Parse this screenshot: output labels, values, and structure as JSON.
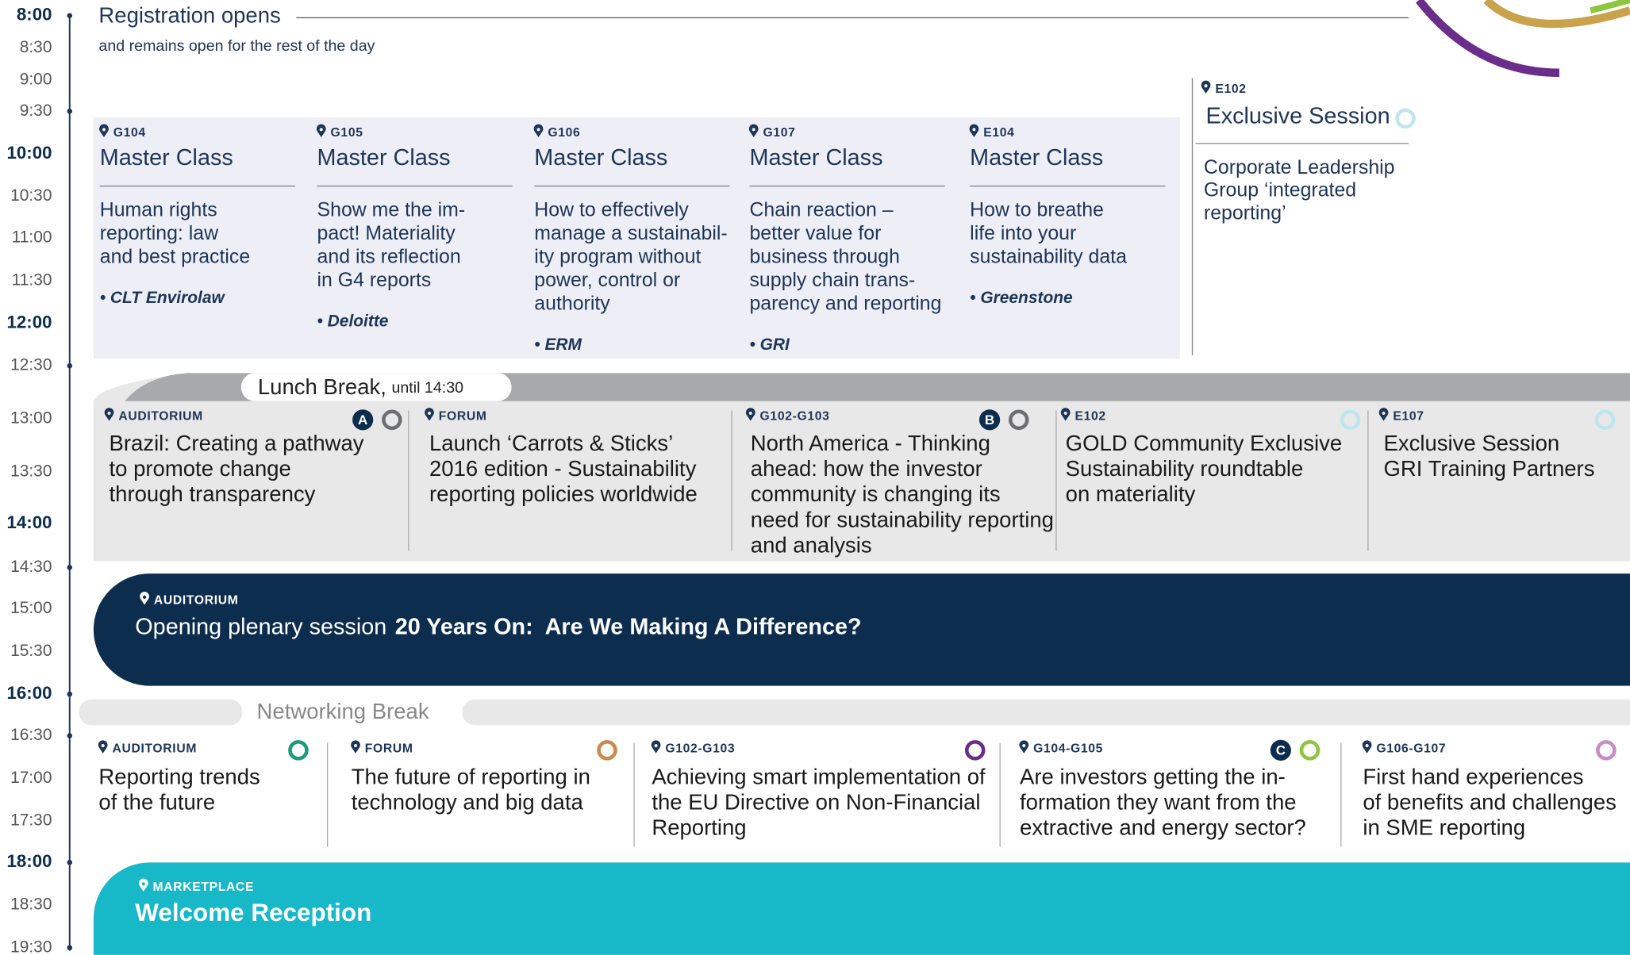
{
  "times": [
    {
      "label": "8:00",
      "major": true
    },
    {
      "label": "8:30",
      "major": false
    },
    {
      "label": "9:00",
      "major": false
    },
    {
      "label": "9:30",
      "major": false
    },
    {
      "label": "10:00",
      "major": true
    },
    {
      "label": "10:30",
      "major": false
    },
    {
      "label": "11:00",
      "major": false
    },
    {
      "label": "11:30",
      "major": false
    },
    {
      "label": "12:00",
      "major": true
    },
    {
      "label": "12:30",
      "major": false
    },
    {
      "label": "13:00",
      "major": false
    },
    {
      "label": "13:30",
      "major": false
    },
    {
      "label": "14:00",
      "major": true
    },
    {
      "label": "14:30",
      "major": false
    },
    {
      "label": "15:00",
      "major": false
    },
    {
      "label": "15:30",
      "major": false
    },
    {
      "label": "16:00",
      "major": true
    },
    {
      "label": "16:30",
      "major": false
    },
    {
      "label": "17:00",
      "major": false
    },
    {
      "label": "17:30",
      "major": false
    },
    {
      "label": "18:00",
      "major": true
    },
    {
      "label": "18:30",
      "major": false
    },
    {
      "label": "19:30",
      "major": false
    }
  ],
  "registration": {
    "title": "Registration opens",
    "note": "and remains open for the rest of the day"
  },
  "master_classes": [
    {
      "room": "G104",
      "title": "Master Class",
      "lines": [
        "Human rights",
        "reporting:  law",
        "and best practice"
      ],
      "speaker": "• CLT Envirolaw"
    },
    {
      "room": "G105",
      "title": "Master Class",
      "lines": [
        "Show me the im-",
        "pact! Materiality",
        "and its reflection",
        "in G4 reports"
      ],
      "speaker": "• Deloitte"
    },
    {
      "room": "G106",
      "title": "Master Class",
      "lines": [
        "How to effectively",
        "manage a sustainabil-",
        "ity program without",
        "power, control or",
        "authority"
      ],
      "speaker": "• ERM"
    },
    {
      "room": "G107",
      "title": "Master Class",
      "lines": [
        "Chain reaction –",
        "better value for",
        "business through",
        "supply chain trans-",
        "parency and reporting"
      ],
      "speaker": "• GRI"
    },
    {
      "room": "E104",
      "title": "Master Class",
      "lines": [
        "How to breathe",
        "life into your",
        "sustainability data"
      ],
      "speaker": "• Greenstone"
    }
  ],
  "exclusive": {
    "room": "E102",
    "title": "Exclusive Session",
    "lines": [
      "Corporate Leadership",
      "Group ‘integrated",
      "reporting’"
    ],
    "color": "#bfe6ee"
  },
  "lunch": {
    "label": "Lunch Break,",
    "until": "until 14:30"
  },
  "midday_sessions": [
    {
      "room": "AUDITORIUM",
      "badge": "A",
      "color": "#6d6e71",
      "lines": [
        "Brazil: Creating a pathway",
        "to promote change",
        "through transparency"
      ]
    },
    {
      "room": "FORUM",
      "lines": [
        "Launch ‘Carrots & Sticks’",
        "2016 edition - Sustainability",
        "reporting policies worldwide"
      ]
    },
    {
      "room": "G102-G103",
      "badge": "B",
      "color": "#6d6e71",
      "lines": [
        "North America - Thinking",
        "ahead: how the investor",
        "community is changing its",
        "need for sustainability reporting",
        "and analysis"
      ]
    },
    {
      "room": "E102",
      "color": "#bfe6ee",
      "lines": [
        "GOLD Community Exclusive",
        "Sustainability roundtable",
        "on materiality"
      ]
    },
    {
      "room": "E107",
      "color": "#bfe6ee",
      "lines": [
        "Exclusive Session",
        "GRI Training Partners"
      ]
    }
  ],
  "plenary": {
    "room": "AUDITORIUM",
    "prefix": "Opening plenary session",
    "title": "20 Years On:  Are We Making A Difference?"
  },
  "networking": "Networking Break",
  "afternoon_sessions": [
    {
      "room": "AUDITORIUM",
      "color": "#1a9c7a",
      "lines": [
        "Reporting trends",
        "of the future"
      ]
    },
    {
      "room": "FORUM",
      "color": "#c98a4b",
      "lines": [
        "The future of reporting in",
        "technology and big data"
      ]
    },
    {
      "room": "G102-G103",
      "color": "#6b2d8b",
      "lines": [
        "Achieving smart implementation of",
        "the EU Directive on Non-Financial",
        "Reporting"
      ]
    },
    {
      "room": "G104-G105",
      "badge": "C",
      "color": "#8dc63f",
      "lines": [
        "Are investors getting the in-",
        "formation they want from the",
        "extractive and energy sector?"
      ]
    },
    {
      "room": "G106-G107",
      "color": "#c98bc4",
      "lines": [
        "First hand experiences",
        "of benefits and challenges",
        "in SME reporting"
      ]
    }
  ],
  "reception": {
    "room": "MARKETPLACE",
    "title": "Welcome Reception"
  }
}
